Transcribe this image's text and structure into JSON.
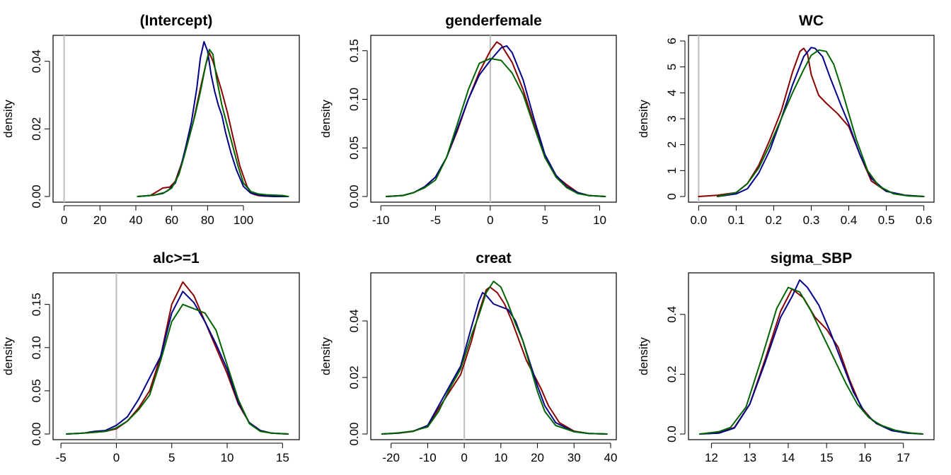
{
  "chart_data": [
    {
      "type": "line",
      "title": "(Intercept)",
      "ylabel": "density",
      "xlim": [
        -3,
        128
      ],
      "ylim": [
        0,
        0.046
      ],
      "xticks": [
        0,
        20,
        40,
        60,
        80,
        100
      ],
      "xtick_labels": [
        "0",
        "20",
        "40",
        "60",
        "80",
        "100"
      ],
      "yticks": [
        0,
        0.02,
        0.04
      ],
      "ytick_labels": [
        "0.00",
        "0.02",
        "0.04"
      ],
      "vline": 0,
      "series": [
        {
          "color": "#8B0000",
          "x": [
            41,
            48,
            52,
            55,
            59,
            62,
            65,
            68,
            72,
            76,
            79,
            81,
            83,
            86,
            88,
            91,
            94,
            98,
            102,
            105,
            108,
            112,
            118,
            125
          ],
          "y": [
            0.0,
            0.0003,
            0.0015,
            0.0025,
            0.0028,
            0.0045,
            0.009,
            0.014,
            0.022,
            0.032,
            0.039,
            0.0425,
            0.04,
            0.0345,
            0.031,
            0.025,
            0.018,
            0.009,
            0.003,
            0.0008,
            0.0003,
            0.0001,
            0.0,
            0.0
          ]
        },
        {
          "color": "#00008B",
          "x": [
            41,
            50,
            55,
            58,
            62,
            65,
            68,
            71,
            74,
            76,
            78,
            80,
            82,
            84,
            86,
            88,
            90,
            93,
            96,
            100,
            104,
            110,
            118,
            125
          ],
          "y": [
            0.0,
            0.0004,
            0.0009,
            0.0018,
            0.004,
            0.0085,
            0.015,
            0.022,
            0.032,
            0.041,
            0.0458,
            0.043,
            0.036,
            0.031,
            0.027,
            0.024,
            0.019,
            0.013,
            0.008,
            0.003,
            0.001,
            0.0003,
            0.0,
            0.0
          ]
        },
        {
          "color": "#006400",
          "x": [
            41,
            50,
            56,
            60,
            64,
            67,
            70,
            73,
            76,
            79,
            81,
            83,
            85,
            88,
            91,
            94,
            97,
            100,
            104,
            108,
            113,
            118,
            122,
            125
          ],
          "y": [
            0.0,
            0.0004,
            0.0012,
            0.0025,
            0.0065,
            0.012,
            0.018,
            0.024,
            0.031,
            0.039,
            0.0435,
            0.042,
            0.035,
            0.027,
            0.021,
            0.015,
            0.009,
            0.004,
            0.0015,
            0.0008,
            0.0005,
            0.0004,
            0.0003,
            0.0
          ]
        }
      ]
    },
    {
      "type": "line",
      "title": "genderfemale",
      "ylabel": "density",
      "xlim": [
        -10.4,
        11
      ],
      "ylim": [
        0,
        0.16
      ],
      "xticks": [
        -10,
        -5,
        0,
        5,
        10
      ],
      "xtick_labels": [
        "-10",
        "-5",
        "0",
        "5",
        "10"
      ],
      "yticks": [
        0,
        0.05,
        0.1,
        0.15
      ],
      "ytick_labels": [
        "0.00",
        "0.05",
        "0.10",
        "0.15"
      ],
      "vline": 0,
      "series": [
        {
          "color": "#8B0000",
          "x": [
            -9.5,
            -8,
            -7,
            -6,
            -5,
            -4,
            -3,
            -2,
            -1,
            0,
            0.6,
            1,
            2,
            3,
            4,
            5,
            6,
            7,
            8,
            9,
            10.5
          ],
          "y": [
            0.0,
            0.001,
            0.004,
            0.01,
            0.02,
            0.04,
            0.068,
            0.1,
            0.128,
            0.15,
            0.159,
            0.156,
            0.138,
            0.11,
            0.075,
            0.042,
            0.021,
            0.012,
            0.004,
            0.001,
            0.0
          ]
        },
        {
          "color": "#00008B",
          "x": [
            -9.5,
            -8,
            -7,
            -6,
            -5,
            -4,
            -3,
            -2,
            -1,
            0,
            1,
            1.5,
            2,
            3,
            4,
            5,
            6,
            7,
            8,
            9,
            10.5
          ],
          "y": [
            0.0,
            0.001,
            0.004,
            0.01,
            0.02,
            0.04,
            0.07,
            0.1,
            0.125,
            0.14,
            0.153,
            0.155,
            0.148,
            0.12,
            0.08,
            0.043,
            0.022,
            0.01,
            0.004,
            0.001,
            0.0
          ]
        },
        {
          "color": "#006400",
          "x": [
            -9.5,
            -8,
            -7,
            -6,
            -5,
            -4,
            -3,
            -2,
            -1,
            0,
            1,
            2,
            3,
            4,
            5,
            6,
            7,
            8,
            9,
            10.5
          ],
          "y": [
            0.0,
            0.001,
            0.004,
            0.009,
            0.017,
            0.04,
            0.075,
            0.11,
            0.137,
            0.142,
            0.14,
            0.127,
            0.105,
            0.072,
            0.04,
            0.02,
            0.009,
            0.003,
            0.001,
            0.0
          ]
        }
      ]
    },
    {
      "type": "line",
      "title": "WC",
      "ylabel": "density",
      "xlim": [
        -0.012,
        0.612
      ],
      "ylim": [
        0,
        6
      ],
      "xticks": [
        0,
        0.1,
        0.2,
        0.3,
        0.4,
        0.5,
        0.6
      ],
      "xtick_labels": [
        "0.0",
        "0.1",
        "0.2",
        "0.3",
        "0.4",
        "0.5",
        "0.6"
      ],
      "yticks": [
        0,
        1,
        2,
        3,
        4,
        5,
        6
      ],
      "ytick_labels": [
        "0",
        "1",
        "2",
        "3",
        "4",
        "5",
        "6"
      ],
      "vline": 0,
      "series": [
        {
          "color": "#8B0000",
          "x": [
            0,
            0.05,
            0.1,
            0.13,
            0.16,
            0.19,
            0.22,
            0.25,
            0.27,
            0.28,
            0.29,
            0.3,
            0.32,
            0.34,
            0.37,
            0.4,
            0.43,
            0.46,
            0.5,
            0.55,
            0.6
          ],
          "y": [
            0.0,
            0.05,
            0.15,
            0.5,
            1.2,
            2.2,
            3.3,
            4.8,
            5.6,
            5.72,
            5.5,
            4.7,
            3.9,
            3.6,
            3.2,
            2.7,
            1.6,
            0.6,
            0.2,
            0.05,
            0.0
          ]
        },
        {
          "color": "#00008B",
          "x": [
            0.05,
            0.1,
            0.13,
            0.16,
            0.19,
            0.22,
            0.25,
            0.28,
            0.3,
            0.31,
            0.33,
            0.35,
            0.38,
            0.4,
            0.43,
            0.46,
            0.5,
            0.55,
            0.6
          ],
          "y": [
            0.0,
            0.1,
            0.3,
            0.9,
            1.8,
            3.0,
            4.3,
            5.4,
            5.75,
            5.72,
            5.4,
            4.6,
            3.5,
            2.8,
            1.6,
            0.7,
            0.2,
            0.05,
            0.0
          ]
        },
        {
          "color": "#006400",
          "x": [
            0.05,
            0.1,
            0.13,
            0.16,
            0.19,
            0.22,
            0.25,
            0.28,
            0.3,
            0.32,
            0.34,
            0.36,
            0.38,
            0.4,
            0.42,
            0.45,
            0.48,
            0.52,
            0.56,
            0.6
          ],
          "y": [
            0.0,
            0.15,
            0.5,
            1.1,
            2.0,
            3.0,
            4.0,
            4.9,
            5.45,
            5.65,
            5.6,
            5.1,
            4.2,
            3.2,
            2.2,
            1.0,
            0.4,
            0.1,
            0.02,
            0.0
          ]
        }
      ]
    },
    {
      "type": "line",
      "title": "alc>=1",
      "ylabel": "density",
      "xlim": [
        -5.2,
        16
      ],
      "ylim": [
        0,
        0.18
      ],
      "xticks": [
        -5,
        0,
        5,
        10,
        15
      ],
      "xtick_labels": [
        "-5",
        "0",
        "5",
        "10",
        "15"
      ],
      "yticks": [
        0,
        0.05,
        0.1,
        0.15
      ],
      "ytick_labels": [
        "0.00",
        "0.05",
        "0.10",
        "0.15"
      ],
      "vline": 0,
      "series": [
        {
          "color": "#8B0000",
          "x": [
            -4.5,
            -3,
            -2,
            -1,
            0,
            1,
            2,
            3,
            4,
            5,
            6,
            7,
            8,
            9,
            10,
            11,
            12,
            13,
            14,
            15.5
          ],
          "y": [
            0.0,
            0.001,
            0.002,
            0.003,
            0.006,
            0.015,
            0.03,
            0.05,
            0.09,
            0.15,
            0.176,
            0.16,
            0.13,
            0.1,
            0.07,
            0.035,
            0.013,
            0.004,
            0.001,
            0.0
          ]
        },
        {
          "color": "#00008B",
          "x": [
            -4.5,
            -3,
            -2,
            -1,
            0,
            1,
            2,
            3,
            4,
            5,
            6,
            7,
            8,
            9,
            10,
            11,
            12,
            13,
            14,
            15.5
          ],
          "y": [
            0.0,
            0.001,
            0.003,
            0.004,
            0.01,
            0.02,
            0.04,
            0.065,
            0.09,
            0.14,
            0.165,
            0.152,
            0.13,
            0.104,
            0.075,
            0.037,
            0.013,
            0.004,
            0.001,
            0.0
          ]
        },
        {
          "color": "#006400",
          "x": [
            -4.5,
            -3,
            -2,
            -1,
            0,
            1,
            2,
            3,
            4,
            5,
            6,
            7,
            8,
            9,
            10,
            11,
            12,
            13,
            14,
            15.5
          ],
          "y": [
            0.0,
            0.001,
            0.002,
            0.003,
            0.007,
            0.015,
            0.028,
            0.045,
            0.085,
            0.13,
            0.15,
            0.145,
            0.14,
            0.12,
            0.08,
            0.04,
            0.012,
            0.003,
            0.001,
            0.0
          ]
        }
      ]
    },
    {
      "type": "line",
      "title": "creat",
      "ylabel": "density",
      "xlim": [
        -24,
        40
      ],
      "ylim": [
        0,
        0.055
      ],
      "xticks": [
        -20,
        -10,
        0,
        10,
        20,
        30,
        40
      ],
      "xtick_labels": [
        "-20",
        "-10",
        "0",
        "10",
        "20",
        "30",
        "40"
      ],
      "yticks": [
        0,
        0.02,
        0.04
      ],
      "ytick_labels": [
        "0.00",
        "0.02",
        "0.04"
      ],
      "vline": 0,
      "series": [
        {
          "color": "#8B0000",
          "x": [
            -22.5,
            -18,
            -14,
            -10,
            -7,
            -4,
            -1,
            2,
            4,
            6,
            7,
            9,
            11,
            13,
            15,
            17,
            19,
            21,
            23,
            26,
            30,
            34,
            39
          ],
          "y": [
            0.0,
            0.0003,
            0.0009,
            0.003,
            0.009,
            0.015,
            0.021,
            0.033,
            0.043,
            0.051,
            0.052,
            0.05,
            0.046,
            0.04,
            0.033,
            0.026,
            0.021,
            0.016,
            0.01,
            0.004,
            0.001,
            0.0002,
            0.0
          ]
        },
        {
          "color": "#00008B",
          "x": [
            -22.5,
            -18,
            -14,
            -10,
            -7,
            -4,
            -1,
            2,
            4,
            5,
            6,
            8,
            10,
            12,
            14,
            16,
            18,
            20,
            22,
            25,
            30,
            34,
            39
          ],
          "y": [
            0.0,
            0.0003,
            0.001,
            0.003,
            0.01,
            0.017,
            0.024,
            0.038,
            0.047,
            0.05,
            0.049,
            0.046,
            0.045,
            0.044,
            0.04,
            0.033,
            0.025,
            0.017,
            0.01,
            0.004,
            0.0008,
            0.0002,
            0.0
          ]
        },
        {
          "color": "#006400",
          "x": [
            -22.5,
            -18,
            -14,
            -12,
            -10,
            -7,
            -4,
            -1,
            2,
            4,
            6,
            8,
            10,
            12,
            14,
            16,
            18,
            20,
            22,
            25,
            30,
            34,
            39
          ],
          "y": [
            0.0,
            0.0004,
            0.001,
            0.0018,
            0.0025,
            0.008,
            0.016,
            0.023,
            0.035,
            0.042,
            0.05,
            0.054,
            0.052,
            0.046,
            0.039,
            0.033,
            0.024,
            0.015,
            0.008,
            0.003,
            0.0008,
            0.0002,
            0.0
          ]
        }
      ]
    },
    {
      "type": "line",
      "title": "sigma_SBP",
      "ylabel": "density",
      "xlim": [
        11.55,
        17.65
      ],
      "ylim": [
        0,
        0.52
      ],
      "xticks": [
        12,
        13,
        14,
        15,
        16,
        17
      ],
      "xtick_labels": [
        "12",
        "13",
        "14",
        "15",
        "16",
        "17"
      ],
      "yticks": [
        0,
        0.2,
        0.4
      ],
      "ytick_labels": [
        "0.0",
        "0.2",
        "0.4"
      ],
      "vline": null,
      "series": [
        {
          "color": "#8B0000",
          "x": [
            11.7,
            12.2,
            12.6,
            13.0,
            13.4,
            13.8,
            14.1,
            14.4,
            14.7,
            15.0,
            15.3,
            15.6,
            15.9,
            16.2,
            16.6,
            17.0,
            17.5
          ],
          "y": [
            0.0,
            0.004,
            0.022,
            0.1,
            0.25,
            0.41,
            0.485,
            0.455,
            0.39,
            0.35,
            0.29,
            0.18,
            0.09,
            0.045,
            0.017,
            0.005,
            0.0
          ]
        },
        {
          "color": "#00008B",
          "x": [
            11.7,
            12.2,
            12.6,
            13.0,
            13.4,
            13.8,
            14.1,
            14.3,
            14.5,
            14.8,
            15.1,
            15.4,
            15.7,
            16.0,
            16.3,
            16.7,
            17.1,
            17.5
          ],
          "y": [
            0.0,
            0.003,
            0.02,
            0.1,
            0.24,
            0.39,
            0.46,
            0.515,
            0.49,
            0.43,
            0.34,
            0.24,
            0.14,
            0.07,
            0.035,
            0.011,
            0.003,
            0.0
          ]
        },
        {
          "color": "#006400",
          "x": [
            11.7,
            12.2,
            12.5,
            12.9,
            13.3,
            13.7,
            14.0,
            14.3,
            14.6,
            14.9,
            15.2,
            15.5,
            15.8,
            16.1,
            16.4,
            16.8,
            17.2,
            17.5
          ],
          "y": [
            0.0,
            0.008,
            0.022,
            0.09,
            0.25,
            0.42,
            0.49,
            0.475,
            0.41,
            0.33,
            0.25,
            0.17,
            0.1,
            0.055,
            0.03,
            0.012,
            0.003,
            0.0
          ]
        }
      ]
    }
  ]
}
